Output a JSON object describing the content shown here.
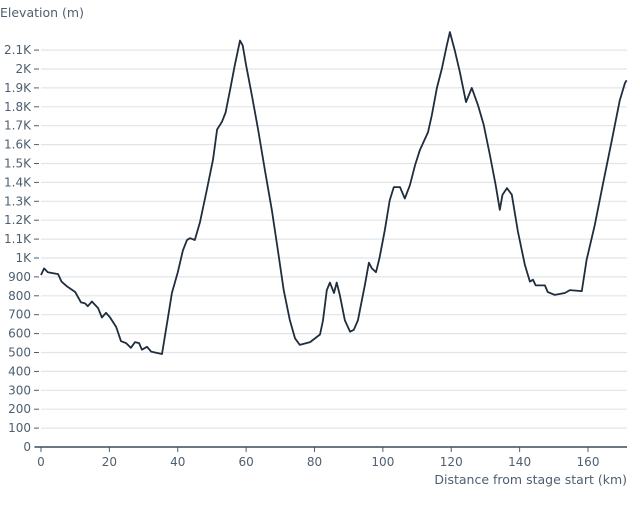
{
  "chart_data": {
    "type": "line",
    "title": "",
    "xlabel": "Distance from stage start (km)",
    "ylabel": "Elevation (m)",
    "xlim": [
      0,
      171.3
    ],
    "ylim": [
      0,
      2200
    ],
    "grid": true,
    "x_ticks": [
      0,
      20,
      40,
      60,
      80,
      100,
      120,
      140,
      160
    ],
    "x_tick_labels": [
      "0",
      "20",
      "40",
      "60",
      "80",
      "100",
      "120",
      "140",
      "160"
    ],
    "y_ticks": [
      0,
      100,
      200,
      300,
      400,
      500,
      600,
      700,
      800,
      900,
      1000,
      1100,
      1200,
      1300,
      1400,
      1500,
      1600,
      1700,
      1800,
      1900,
      2000,
      2100
    ],
    "y_tick_labels": [
      "0",
      "100",
      "200",
      "300",
      "400",
      "500",
      "600",
      "700",
      "800",
      "900",
      "1K",
      "1.1K",
      "1.2K",
      "1.3K",
      "1.4K",
      "1.5K",
      "1.6K",
      "1.7K",
      "1.8K",
      "1.9K",
      "2K",
      "2.1K"
    ],
    "line_color": "#1f2d3d",
    "series": [
      {
        "x": [
          0,
          0.9,
          2,
          5,
          6,
          7.6,
          10,
          11.7,
          12.9,
          13.7,
          14.9,
          16.7,
          17.8,
          19,
          20.2,
          22,
          23.4,
          24.9,
          26.3,
          27.5,
          28.7,
          29.5,
          31,
          32.2,
          34.2,
          35.4,
          37,
          38.3,
          40,
          41.5,
          42.7,
          43.6,
          45,
          46.5,
          48.5,
          50.3,
          51.5,
          52.9,
          54,
          55.3,
          56.7,
          58.2,
          59,
          60,
          61.7,
          63.5,
          65.5,
          67.5,
          69.3,
          71,
          72.8,
          74.3,
          75.7,
          78.7,
          81.6,
          82.5,
          83.6,
          84.5,
          85.7,
          86.5,
          87.4,
          88.9,
          90.4,
          91.5,
          92.7,
          93.9,
          94.7,
          95.9,
          96.8,
          98,
          99,
          100.6,
          102,
          103.2,
          105,
          106.4,
          107.9,
          109.4,
          110.8,
          113.2,
          114.3,
          115.8,
          117.3,
          118.7,
          119.6,
          121,
          122.5,
          124.3,
          126,
          127.8,
          129.5,
          131.3,
          133,
          134.2,
          135,
          136.3,
          137.7,
          139.5,
          141.5,
          143,
          143.9,
          144.7,
          147.4,
          148.2,
          150.3,
          153.2,
          154.7,
          158.2,
          159.6,
          162,
          164.3,
          167,
          169.3,
          170.8,
          171.3
        ],
        "y": [
          910,
          945,
          925,
          915,
          875,
          850,
          820,
          765,
          760,
          745,
          770,
          735,
          685,
          710,
          685,
          635,
          560,
          550,
          525,
          555,
          550,
          515,
          530,
          505,
          497,
          492,
          670,
          815,
          925,
          1040,
          1095,
          1105,
          1095,
          1190,
          1360,
          1520,
          1680,
          1720,
          1770,
          1890,
          2020,
          2150,
          2125,
          2020,
          1860,
          1680,
          1465,
          1255,
          1040,
          830,
          670,
          575,
          540,
          555,
          595,
          670,
          830,
          870,
          815,
          870,
          805,
          670,
          610,
          620,
          670,
          780,
          855,
          975,
          945,
          925,
          1000,
          1150,
          1305,
          1375,
          1375,
          1315,
          1385,
          1490,
          1570,
          1665,
          1755,
          1900,
          2005,
          2125,
          2195,
          2100,
          1985,
          1825,
          1900,
          1810,
          1705,
          1545,
          1385,
          1255,
          1335,
          1370,
          1335,
          1140,
          965,
          875,
          885,
          855,
          855,
          820,
          805,
          815,
          830,
          825,
          990,
          1175,
          1385,
          1625,
          1835,
          1925,
          1940
        ]
      }
    ]
  }
}
